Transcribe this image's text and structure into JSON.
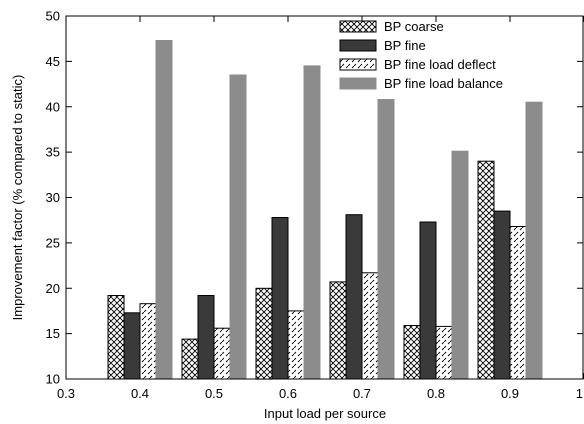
{
  "chart_data": {
    "type": "bar",
    "xlabel": "Input load per source",
    "ylabel": "Improvement factor (% compared to static)",
    "xlim": [
      0.3,
      1.0
    ],
    "ylim": [
      10,
      50
    ],
    "x_ticks": [
      "0.3",
      "0.4",
      "0.5",
      "0.6",
      "0.7",
      "0.8",
      "0.9",
      "1"
    ],
    "y_ticks": [
      "10",
      "15",
      "20",
      "25",
      "30",
      "35",
      "40",
      "45",
      "50"
    ],
    "categories": [
      0.4,
      0.5,
      0.6,
      0.7,
      0.8,
      0.9
    ],
    "legend_position": "top-right",
    "grid": false,
    "series": [
      {
        "name": "BP coarse",
        "pattern": "crosshatch",
        "values": [
          19.2,
          14.4,
          20.0,
          20.7,
          15.9,
          34.0
        ]
      },
      {
        "name": "BP fine",
        "pattern": "solid-dark",
        "values": [
          17.3,
          19.2,
          27.8,
          28.1,
          27.3,
          28.5
        ]
      },
      {
        "name": "BP fine load deflect",
        "pattern": "dashed-diagonal",
        "values": [
          18.3,
          15.6,
          17.5,
          21.7,
          15.8,
          26.8
        ]
      },
      {
        "name": "BP fine load balance",
        "pattern": "solid-gray",
        "values": [
          47.3,
          43.5,
          44.5,
          40.8,
          35.1,
          40.5
        ]
      }
    ],
    "colors": {
      "dark": "#3a3a3a",
      "gray": "#8c8c8c",
      "stroke": "#000000"
    }
  }
}
